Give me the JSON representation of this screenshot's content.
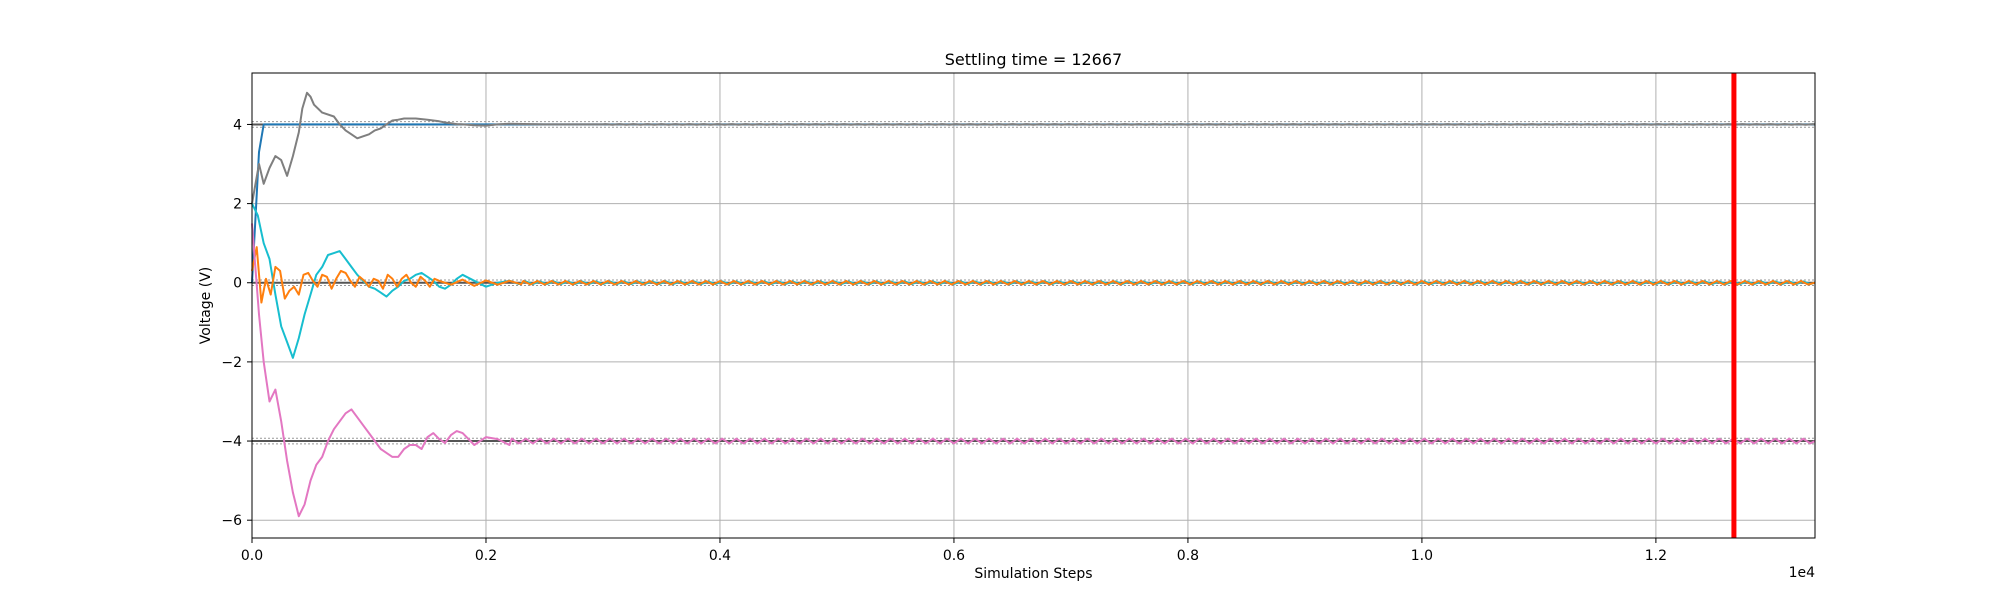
{
  "chart_data": {
    "type": "line",
    "title": "Settling time = 12667",
    "xlabel": "Simulation Steps",
    "ylabel": "Voltage (V)",
    "x_offset_text": "1e4",
    "xlim": [
      0,
      13360
    ],
    "ylim": [
      -6.45,
      5.3
    ],
    "x_tick_values": [
      0,
      2000,
      4000,
      6000,
      8000,
      10000,
      12000
    ],
    "x_tick_labels": [
      "0.0",
      "0.2",
      "0.4",
      "0.6",
      "0.8",
      "1.0",
      "1.2"
    ],
    "y_ticks": [
      -6,
      -4,
      -2,
      0,
      2,
      4
    ],
    "grid": true,
    "settling_time": 12667,
    "settling_line_color": "#ff0000",
    "reference_lines": [
      {
        "y": 4.0,
        "color": "#555555"
      },
      {
        "y": 0.0,
        "color": "#555555"
      },
      {
        "y": -4.0,
        "color": "#555555"
      }
    ],
    "tolerance_bands": [
      {
        "y": 4.07
      },
      {
        "y": 3.93
      },
      {
        "y": 0.07
      },
      {
        "y": -0.07
      },
      {
        "y": -3.93
      },
      {
        "y": -4.07
      }
    ],
    "series": [
      {
        "color": "#1f77b4",
        "x": [
          0,
          60,
          100,
          160,
          2000,
          13360
        ],
        "y": [
          0.0,
          3.3,
          4.0,
          4.0,
          4.0,
          4.0
        ]
      },
      {
        "color": "#7f7f7f",
        "x": [
          0,
          60,
          100,
          150,
          200,
          250,
          300,
          350,
          400,
          430,
          470,
          500,
          530,
          600,
          700,
          750,
          800,
          850,
          900,
          950,
          1000,
          1050,
          1100,
          1150,
          1200,
          1250,
          1300,
          1400,
          1500,
          1600,
          1650,
          1700,
          1750,
          1800,
          1900,
          2000,
          2100,
          2200,
          2500,
          3000,
          13360
        ],
        "y": [
          2.0,
          3.0,
          2.5,
          2.9,
          3.2,
          3.1,
          2.7,
          3.2,
          3.8,
          4.4,
          4.8,
          4.7,
          4.5,
          4.3,
          4.2,
          4.0,
          3.85,
          3.75,
          3.65,
          3.7,
          3.75,
          3.85,
          3.9,
          4.0,
          4.1,
          4.12,
          4.15,
          4.15,
          4.12,
          4.08,
          4.05,
          4.03,
          4.01,
          4.0,
          3.98,
          3.97,
          4.0,
          4.02,
          4.0,
          4.0,
          4.0
        ]
      },
      {
        "color": "#17becf",
        "x": [
          0,
          50,
          100,
          150,
          200,
          250,
          300,
          350,
          400,
          450,
          500,
          550,
          600,
          650,
          700,
          750,
          800,
          850,
          900,
          950,
          1000,
          1050,
          1100,
          1150,
          1200,
          1250,
          1300,
          1350,
          1400,
          1450,
          1500,
          1550,
          1600,
          1650,
          1700,
          1750,
          1800,
          1900,
          2000,
          2100,
          2200,
          13360
        ],
        "y": [
          2.0,
          1.7,
          1.0,
          0.6,
          -0.3,
          -1.1,
          -1.5,
          -1.9,
          -1.4,
          -0.8,
          -0.3,
          0.2,
          0.4,
          0.7,
          0.75,
          0.8,
          0.6,
          0.4,
          0.2,
          0.05,
          -0.1,
          -0.15,
          -0.25,
          -0.35,
          -0.2,
          -0.1,
          0.05,
          0.1,
          0.2,
          0.25,
          0.15,
          0.05,
          -0.1,
          -0.15,
          -0.05,
          0.1,
          0.2,
          0.05,
          -0.1,
          0.0,
          0.05,
          0.0
        ]
      },
      {
        "color": "#ff7f0e",
        "x": [
          0,
          40,
          80,
          120,
          160,
          200,
          240,
          280,
          320,
          360,
          400,
          440,
          480,
          520,
          560,
          600,
          640,
          680,
          720,
          760,
          800,
          840,
          880,
          920,
          960,
          1000,
          1040,
          1080,
          1120,
          1160,
          1200,
          1240,
          1280,
          1320,
          1360,
          1400,
          1440,
          1480,
          1520,
          1560,
          1600,
          1700,
          1800,
          1900,
          2000,
          2100,
          2200,
          2300,
          13360
        ],
        "y": [
          0.3,
          0.9,
          -0.5,
          0.1,
          -0.3,
          0.4,
          0.3,
          -0.4,
          -0.2,
          -0.1,
          -0.3,
          0.2,
          0.25,
          0.05,
          -0.1,
          0.2,
          0.15,
          -0.15,
          0.1,
          0.3,
          0.25,
          0.05,
          -0.1,
          0.15,
          0.05,
          -0.1,
          0.1,
          0.05,
          -0.15,
          0.2,
          0.1,
          -0.1,
          0.1,
          0.2,
          0.0,
          -0.1,
          0.15,
          0.05,
          -0.1,
          0.1,
          0.05,
          -0.05,
          0.08,
          -0.08,
          0.06,
          -0.05,
          0.05,
          -0.04,
          0.0
        ]
      },
      {
        "color": "#e377c2",
        "x": [
          0,
          60,
          100,
          150,
          200,
          250,
          300,
          350,
          400,
          450,
          500,
          550,
          600,
          650,
          700,
          750,
          800,
          850,
          900,
          950,
          1000,
          1050,
          1100,
          1150,
          1200,
          1250,
          1300,
          1350,
          1400,
          1450,
          1500,
          1550,
          1600,
          1650,
          1700,
          1750,
          1800,
          1900,
          2000,
          2100,
          2200,
          13360
        ],
        "y": [
          1.5,
          -0.8,
          -2.0,
          -3.0,
          -2.7,
          -3.5,
          -4.5,
          -5.3,
          -5.9,
          -5.6,
          -5.0,
          -4.6,
          -4.4,
          -4.0,
          -3.7,
          -3.5,
          -3.3,
          -3.2,
          -3.4,
          -3.6,
          -3.8,
          -4.0,
          -4.2,
          -4.3,
          -4.4,
          -4.4,
          -4.2,
          -4.1,
          -4.1,
          -4.2,
          -3.9,
          -3.8,
          -3.95,
          -4.05,
          -3.85,
          -3.75,
          -3.8,
          -4.1,
          -3.9,
          -3.95,
          -4.1,
          -4.0
        ]
      }
    ],
    "steady_ripple": {
      "start": 2200,
      "period": 120
    }
  }
}
